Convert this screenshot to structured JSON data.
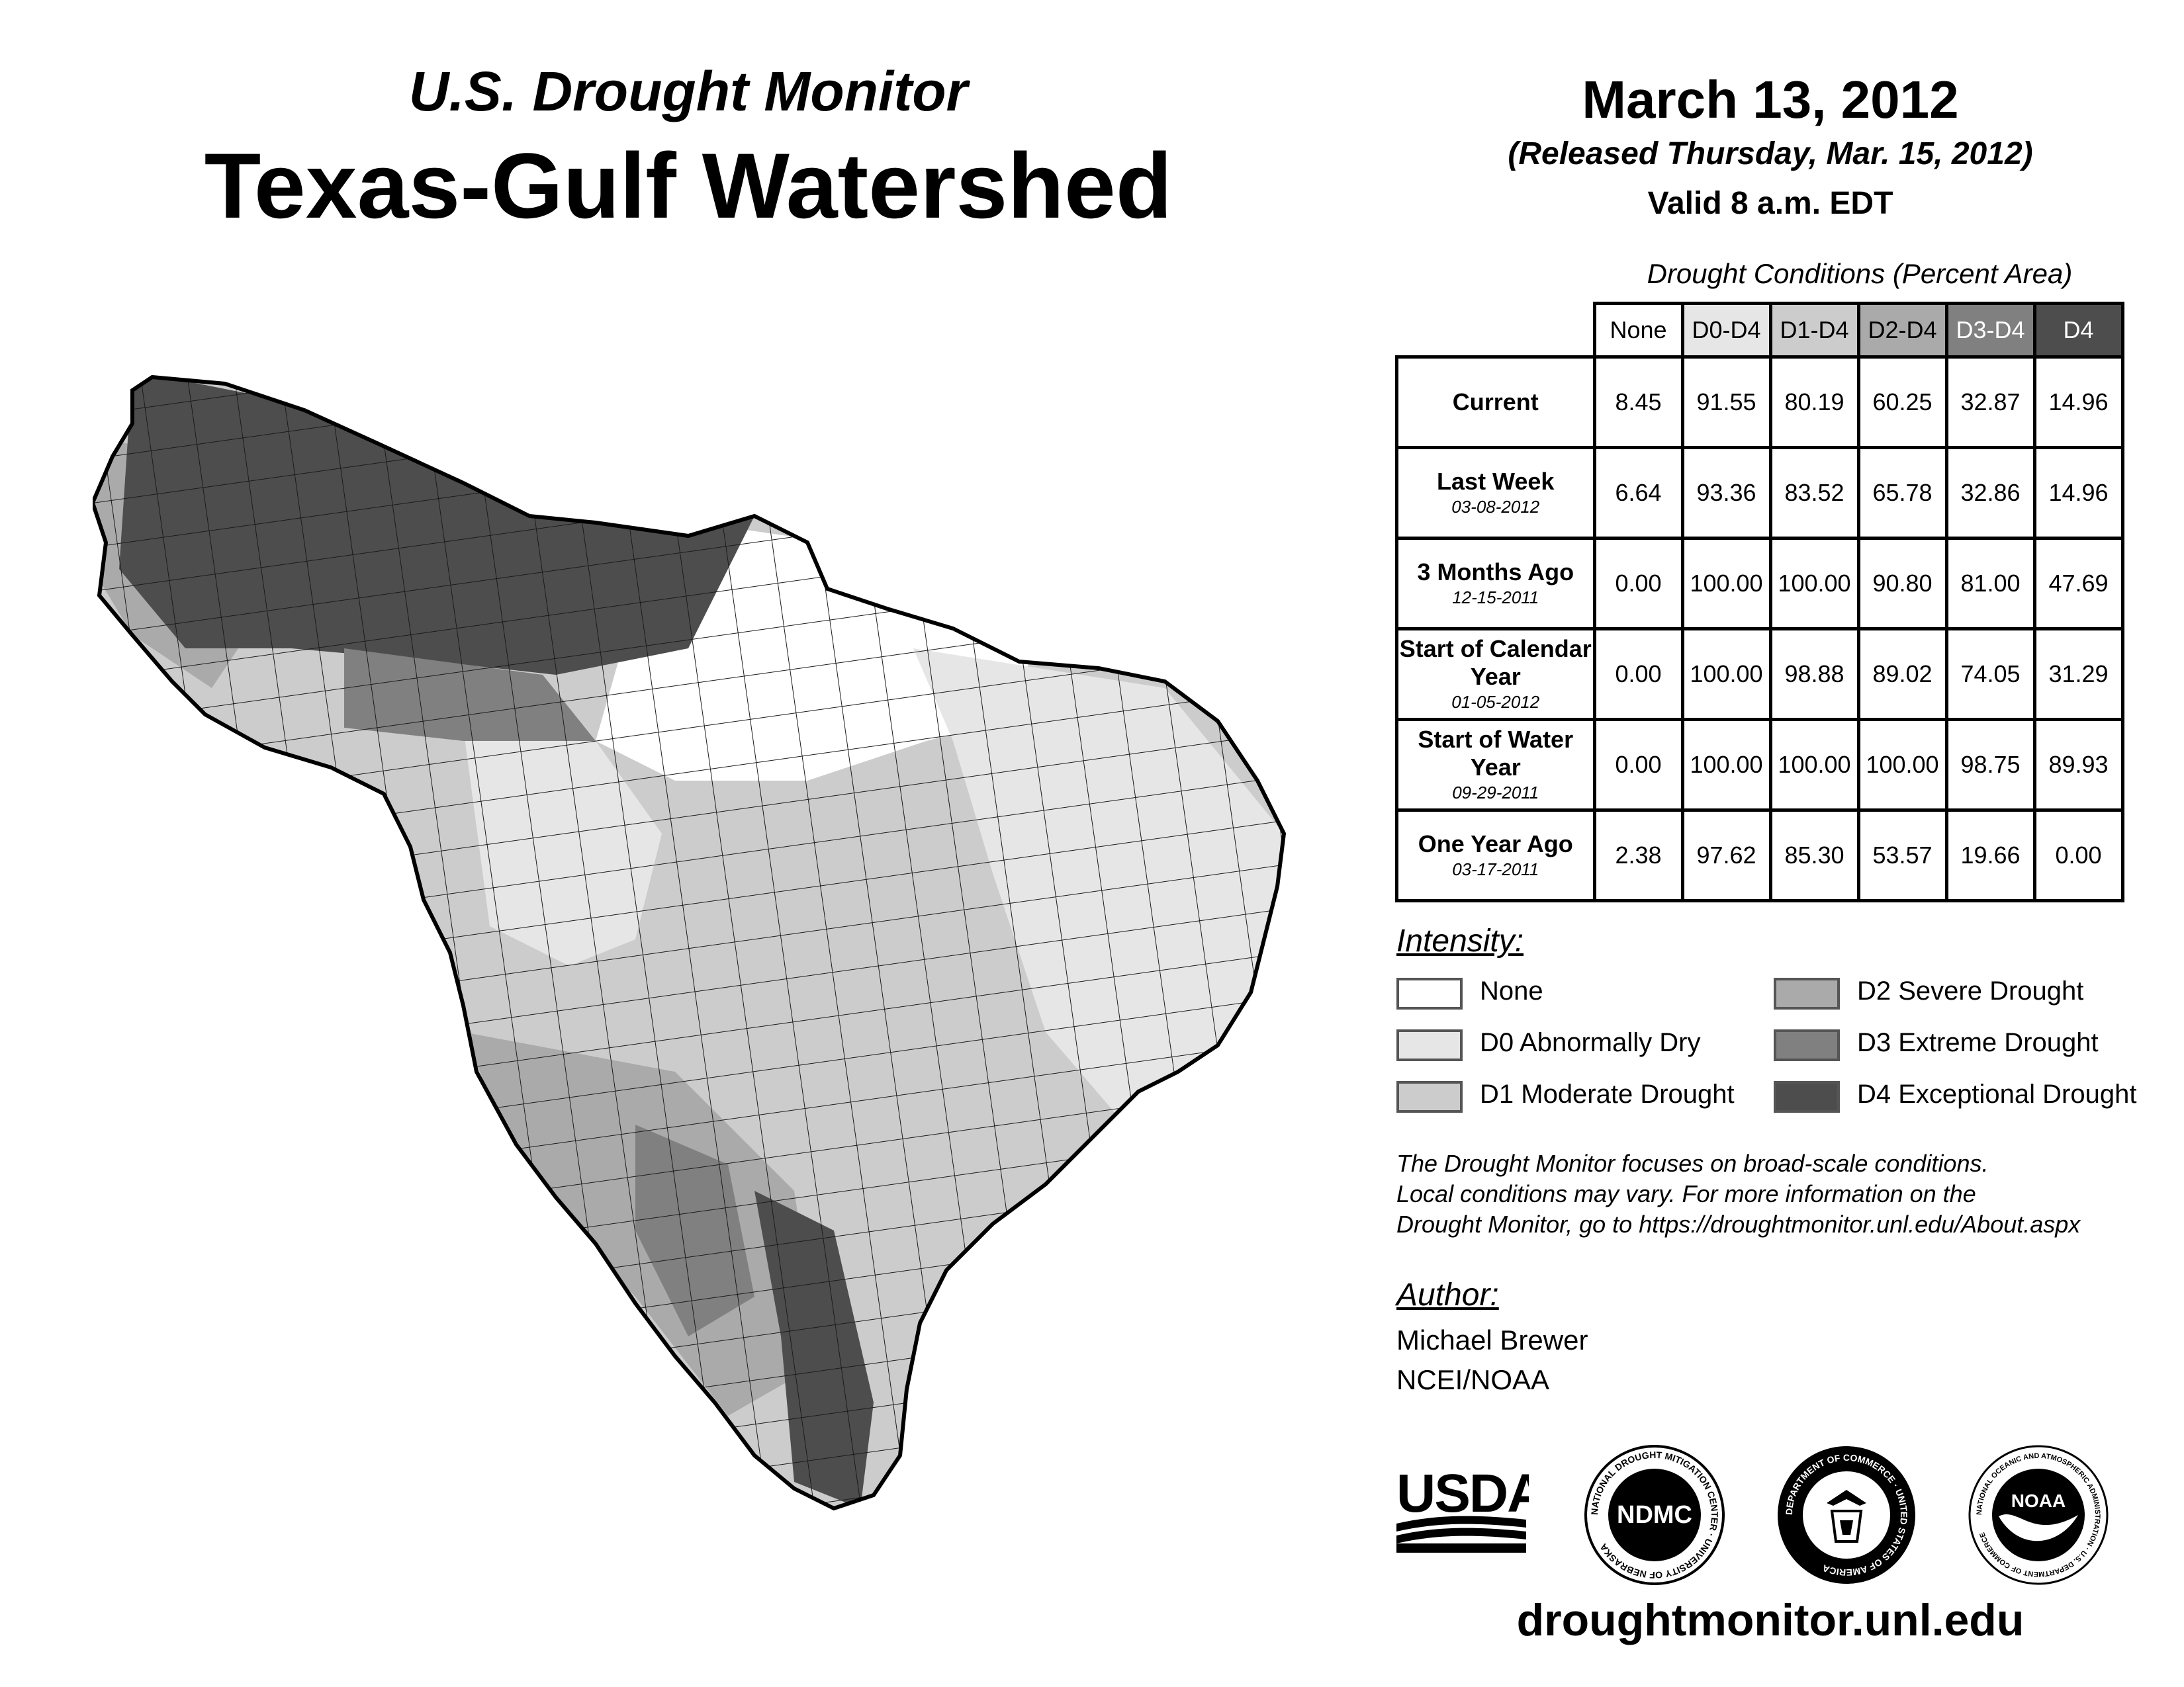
{
  "header": {
    "subtitle": "U.S. Drought Monitor",
    "title": "Texas-Gulf Watershed",
    "date": "March 13, 2012",
    "released": "(Released Thursday, Mar. 15, 2012)",
    "valid": "Valid 8 a.m. EDT"
  },
  "table": {
    "caption": "Drought Conditions (Percent Area)",
    "columns": [
      "None",
      "D0-D4",
      "D1-D4",
      "D2-D4",
      "D3-D4",
      "D4"
    ],
    "rows": [
      {
        "label": "Current",
        "date": "",
        "values": [
          "8.45",
          "91.55",
          "80.19",
          "60.25",
          "32.87",
          "14.96"
        ]
      },
      {
        "label": "Last Week",
        "date": "03-08-2012",
        "values": [
          "6.64",
          "93.36",
          "83.52",
          "65.78",
          "32.86",
          "14.96"
        ]
      },
      {
        "label": "3 Months Ago",
        "date": "12-15-2011",
        "values": [
          "0.00",
          "100.00",
          "100.00",
          "90.80",
          "81.00",
          "47.69"
        ]
      },
      {
        "label": "Start of Calendar Year",
        "date": "01-05-2012",
        "values": [
          "0.00",
          "100.00",
          "98.88",
          "89.02",
          "74.05",
          "31.29"
        ]
      },
      {
        "label": "Start of Water Year",
        "date": "09-29-2011",
        "values": [
          "0.00",
          "100.00",
          "100.00",
          "100.00",
          "98.75",
          "89.93"
        ]
      },
      {
        "label": "One Year Ago",
        "date": "03-17-2011",
        "values": [
          "2.38",
          "97.62",
          "85.30",
          "53.57",
          "19.66",
          "0.00"
        ]
      }
    ]
  },
  "legend": {
    "title": "Intensity:",
    "items": [
      {
        "label": "None",
        "color": "#ffffff"
      },
      {
        "label": "D0 Abnormally Dry",
        "color": "#e6e6e6"
      },
      {
        "label": "D1 Moderate Drought",
        "color": "#cccccc"
      },
      {
        "label": "D2 Severe Drought",
        "color": "#aaaaaa"
      },
      {
        "label": "D3 Extreme Drought",
        "color": "#808080"
      },
      {
        "label": "D4 Exceptional Drought",
        "color": "#4d4d4d"
      }
    ]
  },
  "note": {
    "line1": "The Drought Monitor focuses on broad-scale conditions.",
    "line2": "Local conditions may vary. For more information on the",
    "line3": "Drought Monitor, go to https://droughtmonitor.unl.edu/About.aspx"
  },
  "author": {
    "title": "Author:",
    "name": "Michael Brewer",
    "org": "NCEI/NOAA"
  },
  "logos": {
    "usda": "USDA",
    "ndmc": "NDMC",
    "ndmc_ring": "NATIONAL DROUGHT MITIGATION CENTER · UNIVERSITY OF NEBRASKA",
    "doc_ring": "DEPARTMENT OF COMMERCE · UNITED STATES OF AMERICA",
    "noaa": "NOAA",
    "noaa_ring": "NATIONAL OCEANIC AND ATMOSPHERIC ADMINISTRATION · U.S. DEPARTMENT OF COMMERCE"
  },
  "footer": {
    "url": "droughtmonitor.unl.edu"
  }
}
